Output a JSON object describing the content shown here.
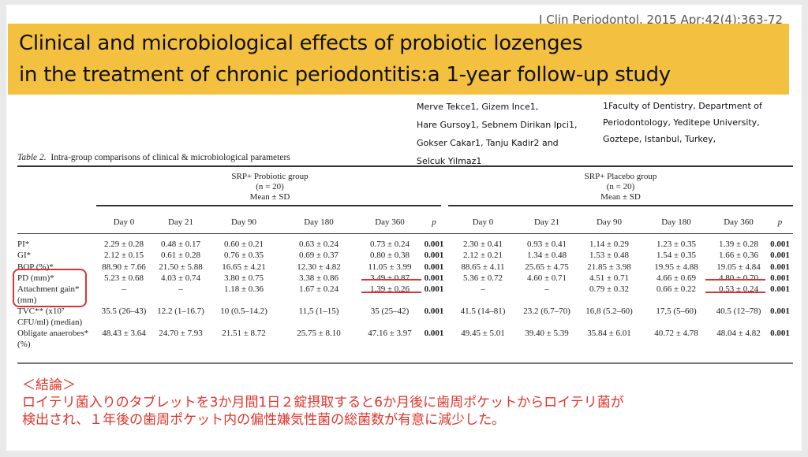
{
  "journal": {
    "name": "J Clin Periodontol",
    "citation": ". 2015 Apr;42(4):363-72"
  },
  "title": {
    "line1": "Clinical and microbiological effects of probiotic lozenges",
    "line2": " in the treatment of chronic periodontitis:a 1-year follow-up study"
  },
  "authors": [
    "Merve Tekce1, Gizem Ince1,",
    "Hare Gursoy1, Sebnem Dirikan Ipci1,",
    "Gokser Cakar1, Tanju Kadir2 and",
    "Selcuk Yilmaz1"
  ],
  "affiliation": [
    "1Faculty of Dentistry, Department of",
    "Periodontology, Yeditepe University,",
    "Goztepe, Istanbul, Turkey,"
  ],
  "table": {
    "caption_label": "Table 2.",
    "caption": "Intra-group comparisons of clinical & microbiological parameters",
    "groups": [
      {
        "name": "SRP+ Probiotic group",
        "n": "(n = 20)",
        "stat": "Mean ± SD"
      },
      {
        "name": "SRP+ Placebo group",
        "n": "(n = 20)",
        "stat": "Mean ± SD"
      }
    ],
    "columns": [
      "Day 0",
      "Day 21",
      "Day 90",
      "Day 180",
      "Day 360",
      "p",
      "Day 0",
      "Day 21",
      "Day 90",
      "Day 180",
      "Day 360",
      "p"
    ],
    "rows": [
      {
        "label": "PI*",
        "cells": [
          "2.29 ± 0.28",
          "0.48 ± 0.17",
          "0.60 ± 0.21",
          "0.63 ± 0.24",
          "0.73 ± 0.24",
          "0.001",
          "2.30 ± 0.41",
          "0.93 ± 0.41",
          "1.14 ± 0.29",
          "1.23 ± 0.35",
          "1.39 ± 0.28",
          "0.001"
        ]
      },
      {
        "label": "GI*",
        "cells": [
          "2.12 ± 0.15",
          "0.61 ± 0.28",
          "0.76 ± 0.35",
          "0.69 ± 0.37",
          "0.80 ± 0.38",
          "0.001",
          "2.12 ± 0.21",
          "1.34 ± 0.48",
          "1.53 ± 0.48",
          "1.54 ± 0.35",
          "1.66 ± 0.36",
          "0.001"
        ]
      },
      {
        "label": "BOP (%)*",
        "cells": [
          "88.90 ± 7.66",
          "21.50 ± 5.88",
          "16.65 ± 4.21",
          "12.30 ± 4.82",
          "11.05 ± 3.99",
          "0.001",
          "88.65 ± 4.11",
          "25.65 ± 4.75",
          "21.85 ± 3.98",
          "19.95 ± 4.88",
          "19.05 ± 4.84",
          "0.001"
        ]
      },
      {
        "label": "PD (mm)*",
        "cells": [
          "5.23 ± 0.68",
          "4.03 ± 0.74",
          "3.80 ± 0.75",
          "3.38 ± 0.86",
          "3.49 ± 0.87",
          "0.001",
          "5.36 ± 0.72",
          "4.60 ± 0.71",
          "4.51 ± 0.71",
          "4.66 ± 0.69",
          "4.80 ± 0.70",
          "0.001"
        ]
      },
      {
        "label": "Attachment gain* (mm)",
        "cells": [
          "–",
          "–",
          "1.18 ± 0.36",
          "1.67 ± 0.24",
          "1.39 ± 0.26",
          "0.001",
          "–",
          "–",
          "0.79 ± 0.32",
          "0.66 ± 0.22",
          "0.53 ± 0.24",
          "0.001"
        ]
      },
      {
        "label": "TVC** (x10⁷ CFU/ml) (median)",
        "cells": [
          "35.5 (26–43)",
          "12.2 (1–16.7)",
          "10 (0.5–14.2)",
          "11,5 (1–15)",
          "35 (25–42)",
          "0.001",
          "41.5 (14–81)",
          "23.2 (6.7–70)",
          "16,8 (5.2–60)",
          "17,5 (5–60)",
          "40.5 (12–78)",
          "0.001"
        ]
      },
      {
        "label": "Obligate anaerobes* (%)",
        "cells": [
          "48.43 ± 3.64",
          "24.70 ± 7.93",
          "21.51 ± 8.72",
          "25.75 ± 8.10",
          "47.16 ± 3.97",
          "0.001",
          "49.45 ± 5.01",
          "39.40 ± 5.39",
          "35.84 ± 6.01",
          "40.72 ± 4.78",
          "48.04 ± 4.82",
          "0.001"
        ]
      }
    ]
  },
  "conclusion": {
    "heading": "＜結論＞",
    "line1": "ロイテリ菌入りのタブレットを3か月間1日２錠摂取すると6か月後に歯周ポケットからロイテリ菌が",
    "line2": "検出され、１年後の歯周ポケット内の偏性嫌気性菌の総菌数が有意に減少した。"
  },
  "colors": {
    "banner": "#f3c03f",
    "highlight": "#dd3333",
    "conclusion": "#e0352b"
  }
}
